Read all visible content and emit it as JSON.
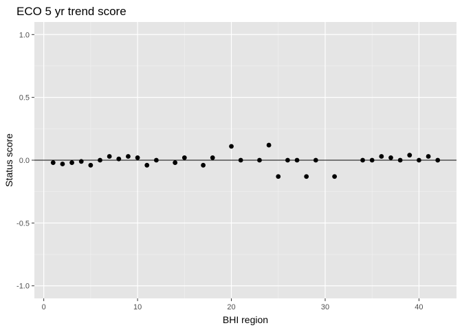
{
  "chart_data": {
    "type": "scatter",
    "title": "ECO 5 yr trend score",
    "xlabel": "BHI region",
    "ylabel": "Status score",
    "xlim": [
      -1,
      44
    ],
    "ylim": [
      -1.1,
      1.1
    ],
    "x_ticks": [
      0,
      10,
      20,
      30,
      40
    ],
    "x_minor_ticks": [
      5,
      15,
      25,
      35
    ],
    "y_ticks": [
      -1.0,
      -0.5,
      0.0,
      0.5,
      1.0
    ],
    "y_tick_labels": [
      "-1.0",
      "-0.5",
      "0.0",
      "0.5",
      "1.0"
    ],
    "y_minor_ticks": [
      -0.75,
      -0.25,
      0.25,
      0.75
    ],
    "grid": true,
    "reference_line_y": 0,
    "points": [
      {
        "x": 1,
        "y": -0.02
      },
      {
        "x": 2,
        "y": -0.03
      },
      {
        "x": 3,
        "y": -0.02
      },
      {
        "x": 4,
        "y": -0.01
      },
      {
        "x": 5,
        "y": -0.04
      },
      {
        "x": 6,
        "y": 0.0
      },
      {
        "x": 7,
        "y": 0.03
      },
      {
        "x": 8,
        "y": 0.01
      },
      {
        "x": 9,
        "y": 0.03
      },
      {
        "x": 10,
        "y": 0.02
      },
      {
        "x": 11,
        "y": -0.04
      },
      {
        "x": 12,
        "y": 0.0
      },
      {
        "x": 14,
        "y": -0.02
      },
      {
        "x": 15,
        "y": 0.02
      },
      {
        "x": 17,
        "y": -0.04
      },
      {
        "x": 18,
        "y": 0.02
      },
      {
        "x": 20,
        "y": 0.11
      },
      {
        "x": 21,
        "y": 0.0
      },
      {
        "x": 23,
        "y": 0.0
      },
      {
        "x": 24,
        "y": 0.12
      },
      {
        "x": 25,
        "y": -0.13
      },
      {
        "x": 26,
        "y": 0.0
      },
      {
        "x": 27,
        "y": 0.0
      },
      {
        "x": 28,
        "y": -0.13
      },
      {
        "x": 29,
        "y": 0.0
      },
      {
        "x": 31,
        "y": -0.13
      },
      {
        "x": 34,
        "y": 0.0
      },
      {
        "x": 35,
        "y": 0.0
      },
      {
        "x": 36,
        "y": 0.03
      },
      {
        "x": 37,
        "y": 0.02
      },
      {
        "x": 38,
        "y": 0.0
      },
      {
        "x": 39,
        "y": 0.04
      },
      {
        "x": 40,
        "y": 0.0
      },
      {
        "x": 41,
        "y": 0.03
      },
      {
        "x": 42,
        "y": 0.0
      }
    ]
  },
  "colors": {
    "panel_background": "#e5e5e5",
    "grid_major": "#ffffff",
    "grid_minor": "#f2f2f2",
    "point": "#000000",
    "reference_line": "#000000",
    "tick_label": "#4d4d4d",
    "tick_mark": "#333333"
  }
}
